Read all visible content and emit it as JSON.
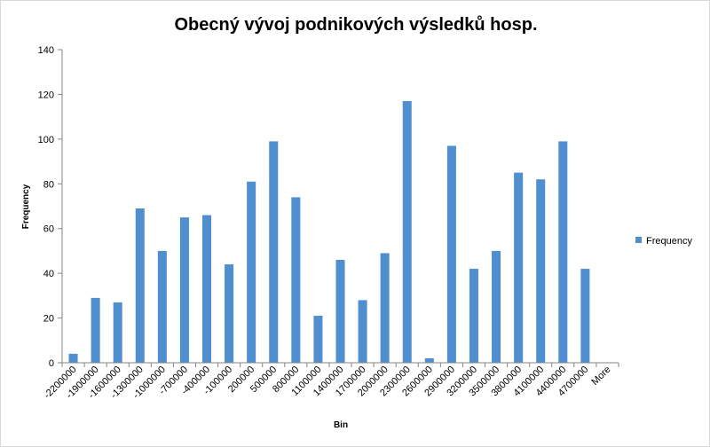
{
  "chart_data": {
    "type": "bar",
    "title": "Obecný vývoj  podnikových výsledků hosp.",
    "xlabel": "Bin",
    "ylabel": "Frequency",
    "ylim": [
      0,
      140
    ],
    "yticks": [
      0,
      20,
      40,
      60,
      80,
      100,
      120,
      140
    ],
    "categories": [
      "-2200000",
      "-1900000",
      "-1600000",
      "-1300000",
      "-1000000",
      "-700000",
      "-400000",
      "-100000",
      "200000",
      "500000",
      "800000",
      "1100000",
      "1400000",
      "1700000",
      "2000000",
      "2300000",
      "2600000",
      "2900000",
      "3200000",
      "3500000",
      "3800000",
      "4100000",
      "4400000",
      "4700000",
      "More"
    ],
    "series": [
      {
        "name": "Frequency",
        "values": [
          4,
          29,
          27,
          69,
          50,
          65,
          66,
          44,
          81,
          99,
          74,
          21,
          46,
          28,
          49,
          117,
          2,
          97,
          42,
          50,
          85,
          82,
          99,
          42,
          0
        ]
      }
    ],
    "grid": false,
    "legend_position": "right",
    "colors": {
      "bar": "#4f8fd0",
      "axis": "#868686",
      "text": "#000000"
    }
  }
}
